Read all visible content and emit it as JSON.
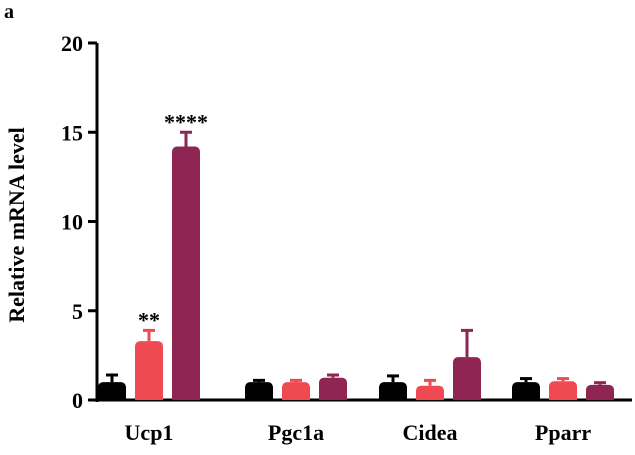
{
  "panel_label": "a",
  "chart_data": {
    "type": "bar",
    "ylabel": "Relative mRNA level",
    "xlabel": "",
    "ylim": [
      0,
      20
    ],
    "yticks": [
      0,
      5,
      10,
      15,
      20
    ],
    "grid": false,
    "categories": [
      "Ucp1",
      "Pgc1a",
      "Cidea",
      "Pparr"
    ],
    "series": [
      {
        "color": "#000000",
        "values": [
          1.0,
          1.0,
          1.0,
          1.0
        ],
        "errors": [
          0.4,
          0.1,
          0.35,
          0.2
        ]
      },
      {
        "color": "#ef4a52",
        "values": [
          3.3,
          1.0,
          0.8,
          1.05
        ],
        "errors": [
          0.6,
          0.1,
          0.3,
          0.15
        ]
      },
      {
        "color": "#8e2552",
        "values": [
          14.2,
          1.25,
          2.4,
          0.85
        ],
        "errors": [
          0.8,
          0.15,
          1.5,
          0.12
        ]
      }
    ],
    "annotations": [
      {
        "category_index": 0,
        "series_index": 1,
        "text": "**"
      },
      {
        "category_index": 0,
        "series_index": 2,
        "text": "****"
      }
    ]
  }
}
